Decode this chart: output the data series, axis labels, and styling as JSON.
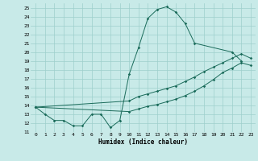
{
  "xlabel": "Humidex (Indice chaleur)",
  "bg_color": "#c8eae8",
  "grid_color": "#9ecfcc",
  "line_color": "#1a6b5a",
  "xlim": [
    -0.5,
    23.5
  ],
  "ylim": [
    11,
    25.5
  ],
  "xticks": [
    0,
    1,
    2,
    3,
    4,
    5,
    6,
    7,
    8,
    9,
    10,
    11,
    12,
    13,
    14,
    15,
    16,
    17,
    18,
    19,
    20,
    21,
    22,
    23
  ],
  "yticks": [
    11,
    12,
    13,
    14,
    15,
    16,
    17,
    18,
    19,
    20,
    21,
    22,
    23,
    24,
    25
  ],
  "line1_x": [
    0,
    1,
    2,
    3,
    4,
    5,
    6,
    7,
    8,
    9,
    10,
    11,
    12,
    13,
    14,
    15,
    16,
    17,
    21,
    22
  ],
  "line1_y": [
    13.8,
    13.0,
    12.3,
    12.3,
    11.7,
    11.7,
    13.0,
    13.0,
    11.5,
    12.3,
    17.5,
    20.5,
    23.8,
    24.8,
    25.1,
    24.5,
    23.2,
    21.0,
    20.0,
    19.0
  ],
  "line2_x": [
    0,
    10,
    11,
    12,
    13,
    14,
    15,
    16,
    17,
    18,
    19,
    20,
    21,
    22,
    23
  ],
  "line2_y": [
    13.8,
    14.5,
    15.0,
    15.3,
    15.6,
    15.9,
    16.2,
    16.7,
    17.2,
    17.8,
    18.3,
    18.8,
    19.3,
    19.8,
    19.3
  ],
  "line3_x": [
    0,
    10,
    11,
    12,
    13,
    14,
    15,
    16,
    17,
    18,
    19,
    20,
    21,
    22,
    23
  ],
  "line3_y": [
    13.8,
    13.3,
    13.6,
    13.9,
    14.1,
    14.4,
    14.7,
    15.1,
    15.6,
    16.2,
    16.9,
    17.7,
    18.2,
    18.8,
    18.5
  ]
}
